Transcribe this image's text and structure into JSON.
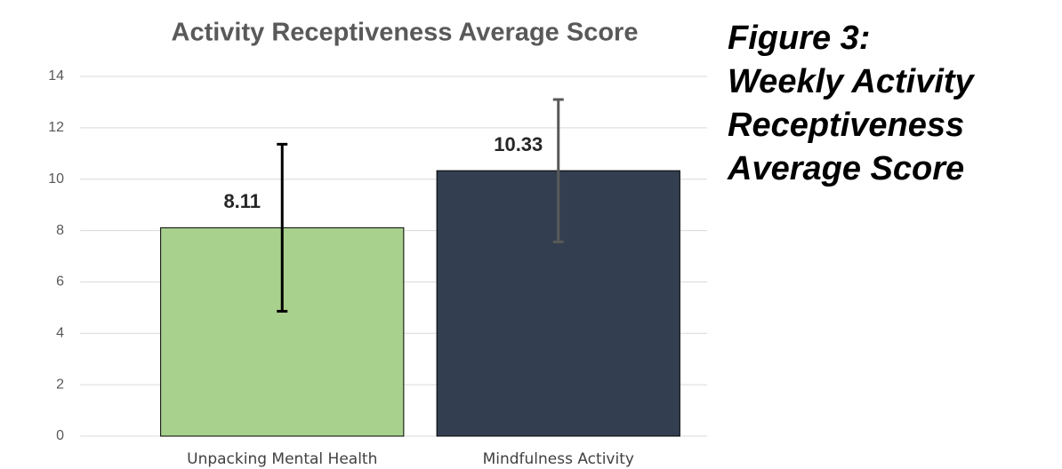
{
  "chart_data": {
    "type": "bar",
    "title": "Activity Receptiveness Average Score",
    "categories": [
      "Unpacking Mental Health",
      "Mindfulness Activity"
    ],
    "values": [
      8.11,
      10.33
    ],
    "errors": [
      3.25,
      2.77
    ],
    "colors": [
      "#a9d18e",
      "#333f50"
    ],
    "error_colors": [
      "#000000",
      "#595959"
    ],
    "ylim": [
      0,
      14
    ],
    "yticks": [
      0,
      2,
      4,
      6,
      8,
      10,
      12,
      14
    ],
    "grid": true
  },
  "caption": [
    "Figure 3:",
    "Weekly Activity",
    "Receptiveness",
    "Average Score"
  ]
}
